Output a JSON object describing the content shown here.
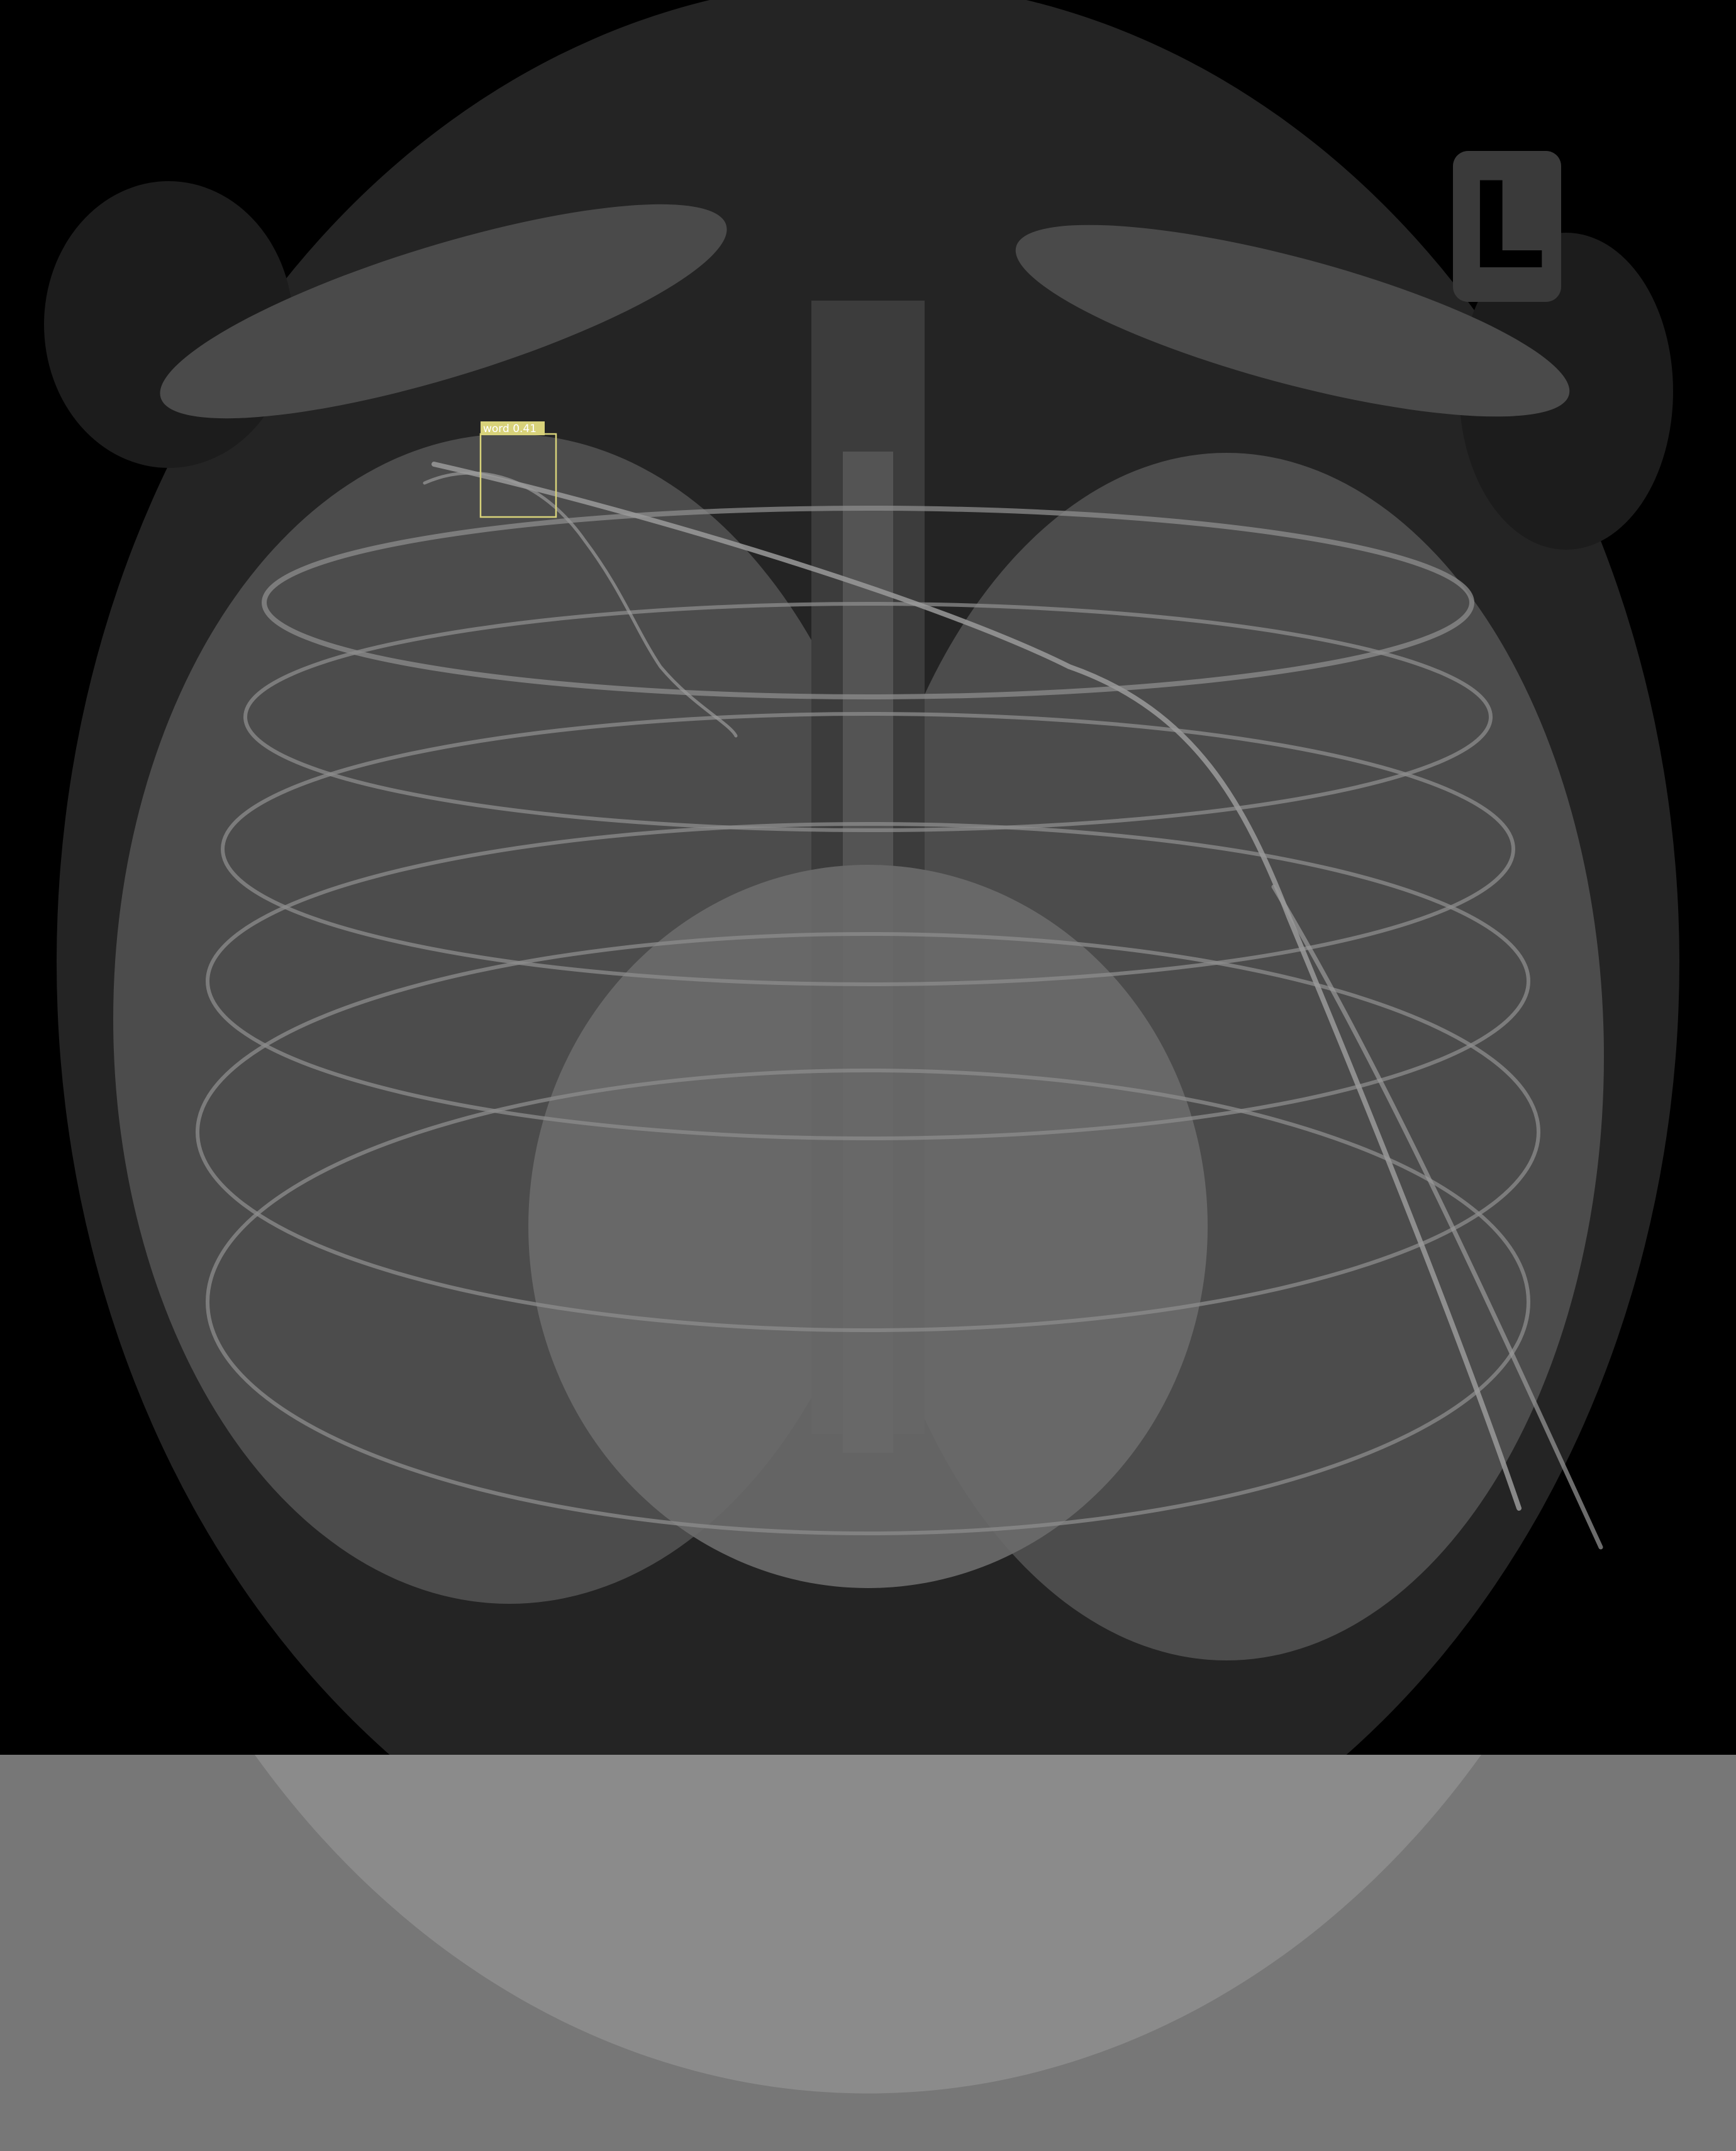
{
  "image": {
    "kind": "chest-xray",
    "side_marker": {
      "letter": "L",
      "color": "#000000",
      "background": "#3a3a3a"
    },
    "detections": [
      {
        "label": "word 0.41",
        "box_color": "#d8d27a",
        "label_text_color": "#ffffff"
      }
    ]
  },
  "colors": {
    "background": "#000000",
    "body": "#242424",
    "lungs": "#4a4a4a",
    "heart": "#6a6a6a",
    "spine": "#404040",
    "ribs": "#8a8a8a",
    "tubes": "#9a9a9a",
    "bottom_band": "#777777"
  }
}
